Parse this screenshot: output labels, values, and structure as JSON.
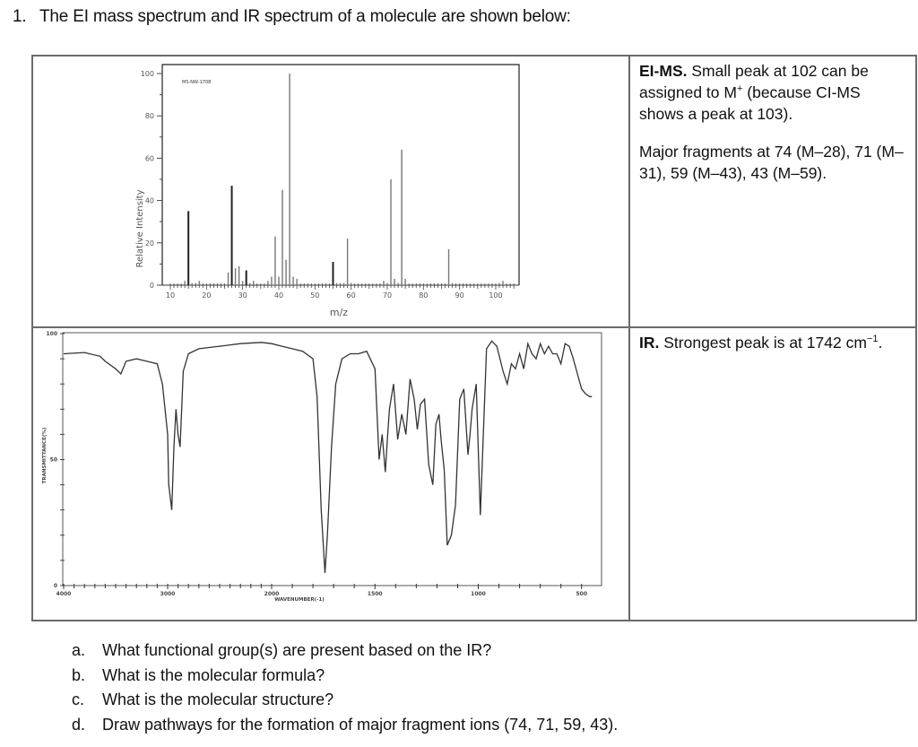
{
  "question": {
    "number": "1.",
    "text": "The EI mass spectrum and IR spectrum of a molecule are shown below:"
  },
  "ms_panel": {
    "title": "EI-MS.",
    "description": "Small peak at 102 can be assigned to M",
    "superscript": "+",
    "description_cont": " (because CI-MS shows a peak at 103).",
    "fragments_text": "Major fragments at 74 (M–28), 71 (M–31), 59 (M–43), 43 (M–59)."
  },
  "ir_panel": {
    "title": "IR.",
    "description": "Strongest peak is at 1742 cm",
    "superscript": "−1",
    "period": "."
  },
  "sub_questions": [
    {
      "letter": "a.",
      "text": "What functional group(s) are present based on the IR?"
    },
    {
      "letter": "b.",
      "text": "What is the molecular formula?"
    },
    {
      "letter": "c.",
      "text": "What is the molecular structure?"
    },
    {
      "letter": "d.",
      "text": "Draw pathways for the formation of major fragment ions (74, 71, 59, 43)."
    }
  ],
  "chart_data": [
    {
      "type": "bar",
      "title": "MS-NW-1708",
      "xlabel": "m/z",
      "ylabel": "Relative Intensity",
      "xlim": [
        10,
        105
      ],
      "ylim": [
        0,
        100
      ],
      "xticks": [
        10,
        20,
        30,
        40,
        50,
        60,
        70,
        80,
        90,
        100
      ],
      "yticks": [
        0,
        20,
        40,
        60,
        80,
        100
      ],
      "grid": false,
      "x": [
        14,
        15,
        16,
        17,
        18,
        26,
        27,
        28,
        29,
        30,
        31,
        32,
        33,
        37,
        38,
        39,
        40,
        41,
        42,
        43,
        44,
        45,
        55,
        56,
        57,
        58,
        59,
        60,
        69,
        70,
        71,
        72,
        73,
        74,
        75,
        87,
        88,
        101,
        102
      ],
      "values": [
        2,
        35,
        1,
        1,
        2,
        6,
        47,
        8,
        9,
        2,
        7,
        1,
        2,
        2,
        4,
        23,
        4,
        45,
        12,
        100,
        4,
        3,
        11,
        1,
        1,
        1,
        22,
        1,
        2,
        1,
        50,
        3,
        1,
        64,
        3,
        17,
        1,
        1,
        2
      ]
    },
    {
      "type": "line",
      "title": "",
      "xlabel": "WAVENUMBER(-1)",
      "ylabel": "TRANSMITTANCE(%)",
      "xlim": [
        4000,
        450
      ],
      "ylim": [
        0,
        100
      ],
      "xticks": [
        4000,
        3000,
        2000,
        1500,
        1000,
        500
      ],
      "yticks": [
        0,
        50,
        100
      ],
      "grid": false,
      "x": [
        4000,
        3800,
        3650,
        3600,
        3500,
        3450,
        3400,
        3300,
        3200,
        3100,
        3050,
        3000,
        2990,
        2960,
        2940,
        2920,
        2900,
        2880,
        2850,
        2800,
        2700,
        2500,
        2300,
        2100,
        2000,
        1950,
        1900,
        1850,
        1800,
        1780,
        1760,
        1742,
        1730,
        1710,
        1690,
        1660,
        1620,
        1580,
        1540,
        1500,
        1480,
        1465,
        1450,
        1440,
        1430,
        1410,
        1390,
        1370,
        1350,
        1330,
        1310,
        1295,
        1280,
        1260,
        1240,
        1220,
        1205,
        1190,
        1180,
        1165,
        1150,
        1130,
        1110,
        1090,
        1070,
        1050,
        1040,
        1030,
        1010,
        990,
        960,
        935,
        910,
        880,
        860,
        840,
        820,
        800,
        780,
        760,
        740,
        720,
        700,
        680,
        660,
        640,
        620,
        600,
        580,
        560,
        540,
        520,
        500,
        480,
        460,
        450
      ],
      "values": [
        92,
        92.5,
        91,
        89,
        86,
        84,
        89,
        90,
        89,
        88,
        80,
        60,
        40,
        30,
        55,
        70,
        60,
        55,
        85,
        92,
        94,
        95,
        96,
        96.5,
        96,
        95,
        94,
        93,
        90,
        75,
        30,
        5,
        20,
        55,
        80,
        90,
        92,
        92,
        93,
        86,
        50,
        60,
        45,
        58,
        70,
        80,
        58,
        68,
        60,
        82,
        74,
        62,
        72,
        74,
        48,
        40,
        64,
        68,
        58,
        46,
        16,
        20,
        32,
        74,
        78,
        52,
        60,
        70,
        80,
        28,
        94,
        97,
        95,
        85,
        80,
        88,
        86,
        92,
        86,
        96,
        92,
        90,
        96,
        92,
        95,
        92,
        92,
        88,
        96,
        95,
        90,
        84,
        78,
        76,
        75,
        75
      ]
    }
  ]
}
